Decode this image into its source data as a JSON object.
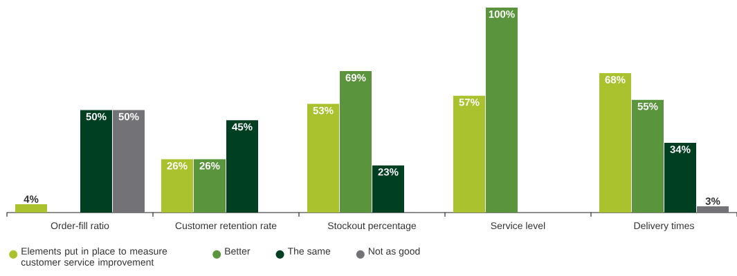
{
  "chart_data": {
    "type": "bar",
    "categories": [
      "Order-fill ratio",
      "Customer retention rate",
      "Stockout percentage",
      "Service level",
      "Delivery times"
    ],
    "series": [
      {
        "name": "Elements put in place to measure customer service improvement",
        "color": "#a9c22e",
        "values": [
          4,
          26,
          53,
          57,
          68
        ],
        "value_labels": [
          "4%",
          "26%",
          "53%",
          "57%",
          "68%"
        ]
      },
      {
        "name": "Better",
        "color": "#5a943c",
        "values": [
          null,
          26,
          69,
          100,
          55
        ],
        "value_labels": [
          null,
          "26%",
          "69%",
          "100%",
          "55%"
        ]
      },
      {
        "name": "The same",
        "color": "#003f22",
        "values": [
          50,
          45,
          23,
          null,
          34
        ],
        "value_labels": [
          "50%",
          "45%",
          "23%",
          null,
          "34%"
        ]
      },
      {
        "name": "Not as good",
        "color": "#737276",
        "values": [
          50,
          null,
          null,
          null,
          3
        ],
        "value_labels": [
          "50%",
          null,
          null,
          null,
          "3%"
        ]
      }
    ],
    "ylim": [
      0,
      100
    ],
    "legend": "bottom left"
  }
}
